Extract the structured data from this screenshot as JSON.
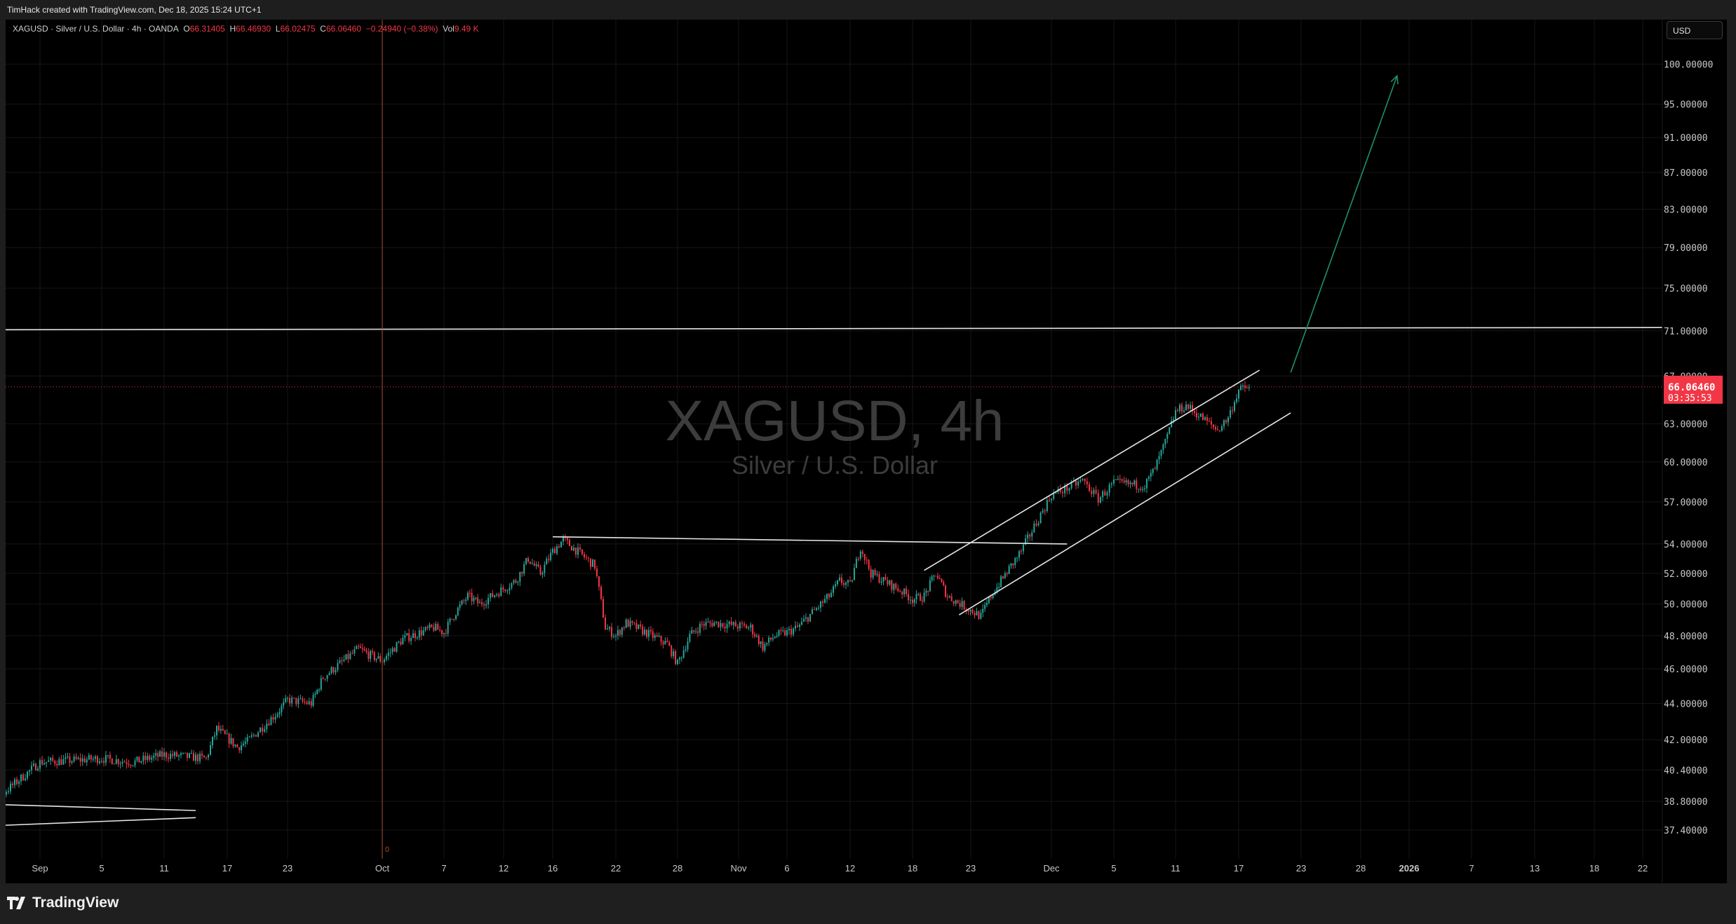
{
  "topbar": {
    "credit": "TimHack created with TradingView.com, Dec 18, 2025 15:24 UTC+1"
  },
  "legend": {
    "symbol": "XAGUSD · Silver / U.S. Dollar · 4h · OANDA",
    "o_label": "O",
    "o": "66.31405",
    "h_label": "H",
    "h": "66.46930",
    "l_label": "L",
    "l": "66.02475",
    "c_label": "C",
    "c": "66.06460",
    "change": "−0.24940 (−0.38%)",
    "vol_label": "Vol",
    "vol": "9.49 K"
  },
  "currency_button": "USD",
  "watermark": {
    "title": "XAGUSD, 4h",
    "subtitle": "Silver / U.S. Dollar"
  },
  "price_label": {
    "price": "66.06460",
    "countdown": "03:35:53"
  },
  "cursor_marker": "0",
  "footer": {
    "brand": "TradingView"
  },
  "colors": {
    "up": "#26a69a",
    "down": "#f23645",
    "background": "#000000",
    "drawing": "#e6e6e6",
    "arrow": "#1e8f6e",
    "crosshair": "#b0502a"
  },
  "chart_data": {
    "type": "candlestick",
    "scale": "log",
    "grid": true,
    "ylim": [
      36.5,
      105
    ],
    "y_ticks": [
      "100.00000",
      "95.00000",
      "91.00000",
      "87.00000",
      "83.00000",
      "79.00000",
      "75.00000",
      "71.00000",
      "67.00000",
      "63.00000",
      "60.00000",
      "57.00000",
      "54.00000",
      "52.00000",
      "50.00000",
      "48.00000",
      "46.00000",
      "44.00000",
      "42.00000",
      "40.40000",
      "38.80000",
      "37.40000"
    ],
    "x_ticks": [
      {
        "label": "Sep",
        "date": "2025-09-01"
      },
      {
        "label": "5",
        "date": "2025-09-05"
      },
      {
        "label": "11",
        "date": "2025-09-11"
      },
      {
        "label": "17",
        "date": "2025-09-17"
      },
      {
        "label": "23",
        "date": "2025-09-23"
      },
      {
        "label": "Oct",
        "date": "2025-10-01"
      },
      {
        "label": "7",
        "date": "2025-10-07"
      },
      {
        "label": "12",
        "date": "2025-10-12"
      },
      {
        "label": "16",
        "date": "2025-10-16"
      },
      {
        "label": "22",
        "date": "2025-10-22"
      },
      {
        "label": "28",
        "date": "2025-10-28"
      },
      {
        "label": "Nov",
        "date": "2025-11-02"
      },
      {
        "label": "6",
        "date": "2025-11-06"
      },
      {
        "label": "12",
        "date": "2025-11-12"
      },
      {
        "label": "18",
        "date": "2025-11-18"
      },
      {
        "label": "23",
        "date": "2025-11-23"
      },
      {
        "label": "Dec",
        "date": "2025-12-01"
      },
      {
        "label": "5",
        "date": "2025-12-05"
      },
      {
        "label": "11",
        "date": "2025-12-11"
      },
      {
        "label": "17",
        "date": "2025-12-17"
      },
      {
        "label": "23",
        "date": "2025-12-23"
      },
      {
        "label": "28",
        "date": "2025-12-28"
      },
      {
        "label": "2026",
        "date": "2026-01-01"
      },
      {
        "label": "7",
        "date": "2026-01-07"
      },
      {
        "label": "13",
        "date": "2026-01-13"
      },
      {
        "label": "18",
        "date": "2026-01-18"
      },
      {
        "label": "22",
        "date": "2026-01-22"
      }
    ],
    "last_price": 66.0646,
    "price_path": [
      [
        "2025-08-27",
        38.5
      ],
      [
        "2025-08-29",
        38.8
      ],
      [
        "2025-09-01",
        40.8
      ],
      [
        "2025-09-05",
        41.0
      ],
      [
        "2025-09-08",
        40.8
      ],
      [
        "2025-09-11",
        41.2
      ],
      [
        "2025-09-15",
        41.0
      ],
      [
        "2025-09-16",
        42.6
      ],
      [
        "2025-09-18",
        41.6
      ],
      [
        "2025-09-19",
        41.9
      ],
      [
        "2025-09-22",
        43.5
      ],
      [
        "2025-09-23",
        44.2
      ],
      [
        "2025-09-25",
        44.0
      ],
      [
        "2025-09-26",
        45.5
      ],
      [
        "2025-09-29",
        47.2
      ],
      [
        "2025-09-30",
        46.8
      ],
      [
        "2025-10-01",
        46.5
      ],
      [
        "2025-10-03",
        47.8
      ],
      [
        "2025-10-06",
        48.5
      ],
      [
        "2025-10-07",
        48.2
      ],
      [
        "2025-10-08",
        49.5
      ],
      [
        "2025-10-09",
        50.5
      ],
      [
        "2025-10-10",
        50.0
      ],
      [
        "2025-10-13",
        51.5
      ],
      [
        "2025-10-14",
        53.0
      ],
      [
        "2025-10-15",
        52.0
      ],
      [
        "2025-10-16",
        53.5
      ],
      [
        "2025-10-17",
        54.3
      ],
      [
        "2025-10-20",
        52.5
      ],
      [
        "2025-10-21",
        48.5
      ],
      [
        "2025-10-22",
        48.0
      ],
      [
        "2025-10-23",
        48.8
      ],
      [
        "2025-10-24",
        48.5
      ],
      [
        "2025-10-27",
        47.5
      ],
      [
        "2025-10-28",
        46.3
      ],
      [
        "2025-10-29",
        48.0
      ],
      [
        "2025-10-30",
        48.7
      ],
      [
        "2025-10-31",
        48.8
      ],
      [
        "2025-11-03",
        48.5
      ],
      [
        "2025-11-04",
        47.3
      ],
      [
        "2025-11-05",
        48.0
      ],
      [
        "2025-11-06",
        48.2
      ],
      [
        "2025-11-07",
        48.5
      ],
      [
        "2025-11-10",
        50.5
      ],
      [
        "2025-11-11",
        51.5
      ],
      [
        "2025-11-12",
        51.2
      ],
      [
        "2025-11-13",
        53.8
      ],
      [
        "2025-11-14",
        52.0
      ],
      [
        "2025-11-17",
        50.8
      ],
      [
        "2025-11-18",
        50.3
      ],
      [
        "2025-11-19",
        50.5
      ],
      [
        "2025-11-20",
        52.0
      ],
      [
        "2025-11-21",
        50.5
      ],
      [
        "2025-11-24",
        49.2
      ],
      [
        "2025-11-25",
        50.5
      ],
      [
        "2025-11-26",
        51.5
      ],
      [
        "2025-11-27",
        52.5
      ],
      [
        "2025-11-28",
        53.5
      ],
      [
        "2025-12-01",
        57.5
      ],
      [
        "2025-12-02",
        58.0
      ],
      [
        "2025-12-03",
        58.6
      ],
      [
        "2025-12-04",
        57.2
      ],
      [
        "2025-12-05",
        58.4
      ],
      [
        "2025-12-08",
        58.2
      ],
      [
        "2025-12-09",
        59.5
      ],
      [
        "2025-12-10",
        61.5
      ],
      [
        "2025-12-11",
        64.0
      ],
      [
        "2025-12-12",
        64.5
      ],
      [
        "2025-12-15",
        62.5
      ],
      [
        "2025-12-16",
        63.5
      ],
      [
        "2025-12-17",
        65.8
      ],
      [
        "2025-12-18",
        66.0646
      ]
    ],
    "drawings": [
      {
        "type": "horizontal-line",
        "from": [
          "2025-08-27",
          71.1
        ],
        "to": [
          "2026-01-25",
          71.3
        ]
      },
      {
        "type": "trend-line",
        "from": [
          "2025-10-16",
          54.5
        ],
        "to": [
          "2025-12-02",
          54.0
        ]
      },
      {
        "type": "channel-upper",
        "from": [
          "2025-11-19",
          52.2
        ],
        "to": [
          "2025-12-19",
          67.5
        ]
      },
      {
        "type": "channel-lower",
        "from": [
          "2025-11-22",
          49.3
        ],
        "to": [
          "2025-12-22",
          63.9
        ]
      },
      {
        "type": "arrow",
        "from": [
          "2025-12-22",
          67.3
        ],
        "to": [
          "2025-12-31",
          98.5
        ]
      },
      {
        "type": "triangle-upper",
        "from": [
          "2025-08-27",
          38.7
        ],
        "to": [
          "2025-09-14",
          38.35
        ]
      },
      {
        "type": "triangle-lower",
        "from": [
          "2025-08-27",
          37.55
        ],
        "to": [
          "2025-09-14",
          38.0
        ]
      },
      {
        "type": "vertical-line",
        "at": "2025-10-01"
      }
    ]
  }
}
